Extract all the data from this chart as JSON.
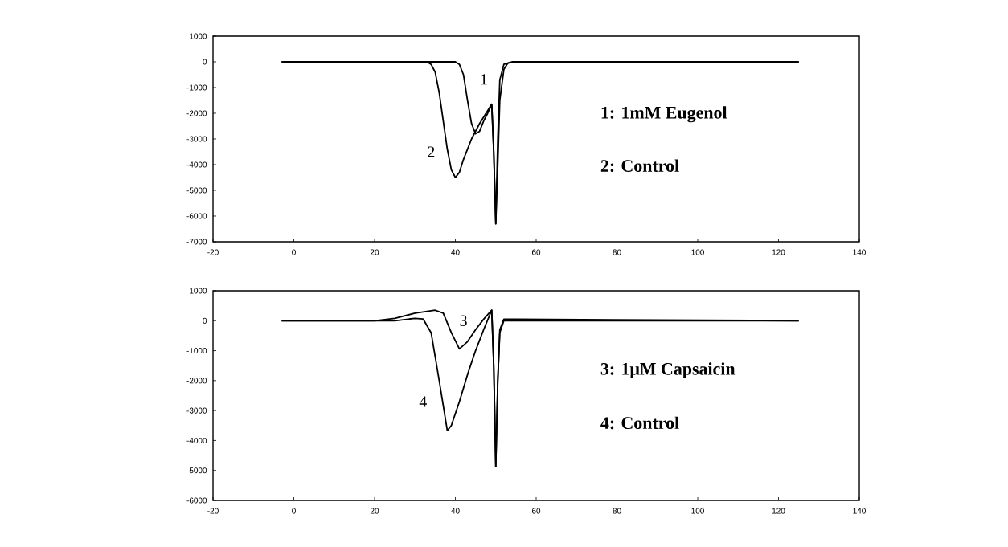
{
  "chart_data": [
    {
      "type": "line",
      "xlim": [
        -20,
        140
      ],
      "ylim": [
        -7000,
        1000
      ],
      "xticks": [
        -20,
        0,
        20,
        40,
        60,
        80,
        100,
        120,
        140
      ],
      "yticks": [
        -7000,
        -6000,
        -5000,
        -4000,
        -3000,
        -2000,
        -1000,
        0,
        1000
      ],
      "grid": false,
      "legend": false,
      "series": [
        {
          "name": "1",
          "color": "#000000",
          "x": [
            -3,
            40,
            41,
            42,
            43,
            44,
            45,
            46,
            47,
            48,
            49,
            49.5,
            50,
            50.5,
            51,
            52,
            53,
            55,
            125
          ],
          "values": [
            0,
            0,
            -100,
            -500,
            -1500,
            -2400,
            -2800,
            -2700,
            -2300,
            -2000,
            -1650,
            -3500,
            -6300,
            -4000,
            -1500,
            -300,
            -50,
            0,
            0
          ]
        },
        {
          "name": "2",
          "color": "#000000",
          "x": [
            -3,
            33,
            34,
            35,
            36,
            37,
            38,
            39,
            40,
            41,
            42,
            44,
            46,
            48,
            49,
            49.5,
            50,
            50.5,
            51,
            52,
            54,
            125
          ],
          "values": [
            0,
            0,
            -100,
            -400,
            -1200,
            -2300,
            -3400,
            -4200,
            -4500,
            -4300,
            -3800,
            -3000,
            -2400,
            -1900,
            -1650,
            -3500,
            -6300,
            -3000,
            -700,
            -100,
            0,
            0
          ]
        }
      ],
      "annotations": [
        "1: 1mM Eugenol",
        "2: Control"
      ]
    },
    {
      "type": "line",
      "xlim": [
        -20,
        140
      ],
      "ylim": [
        -6000,
        1000
      ],
      "xticks": [
        -20,
        0,
        20,
        40,
        60,
        80,
        100,
        120,
        140
      ],
      "yticks": [
        -6000,
        -5000,
        -4000,
        -3000,
        -2000,
        -1000,
        0,
        1000
      ],
      "grid": false,
      "legend": false,
      "series": [
        {
          "name": "3",
          "color": "#000000",
          "x": [
            -3,
            20,
            25,
            30,
            35,
            37,
            39,
            41,
            43,
            45,
            47,
            49,
            49.5,
            50,
            50.5,
            51,
            52,
            55,
            125
          ],
          "values": [
            0,
            0,
            80,
            250,
            350,
            250,
            -400,
            -940,
            -700,
            -300,
            50,
            350,
            -1500,
            -4880,
            -2000,
            -300,
            50,
            50,
            0
          ]
        },
        {
          "name": "4",
          "color": "#000000",
          "x": [
            -3,
            25,
            30,
            32,
            34,
            36,
            38,
            39,
            41,
            43,
            45,
            47,
            49,
            49.5,
            50,
            50.5,
            51,
            52,
            125
          ],
          "values": [
            0,
            0,
            80,
            60,
            -400,
            -2000,
            -3670,
            -3500,
            -2700,
            -1800,
            -1000,
            -300,
            350,
            -1500,
            -4880,
            -2000,
            -400,
            0,
            0
          ]
        }
      ],
      "annotations": [
        "3: 1μM Capsaicin",
        "4: Control"
      ]
    }
  ]
}
